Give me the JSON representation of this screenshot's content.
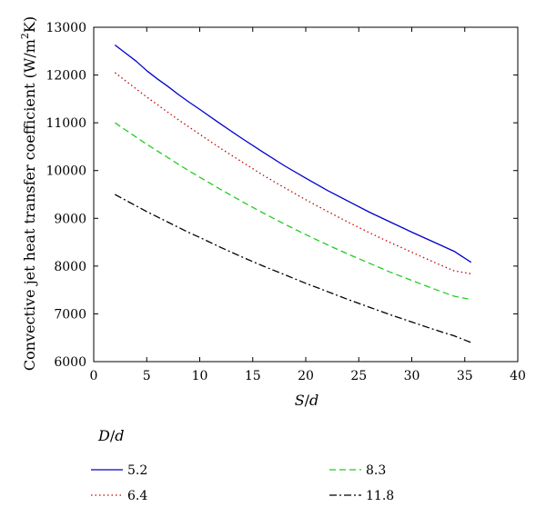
{
  "chart_data": {
    "type": "line",
    "xlabel_parts": {
      "var1": "S",
      "slash": "/",
      "var2": "d"
    },
    "ylabel_parts": {
      "main": "Convective jet heat transfer coefficient (W/m",
      "sup": "2",
      "end": "K)"
    },
    "xlim": [
      0,
      40
    ],
    "ylim": [
      6000,
      13000
    ],
    "x_ticks": [
      0,
      5,
      10,
      15,
      20,
      25,
      30,
      35,
      40
    ],
    "y_ticks": [
      6000,
      7000,
      8000,
      9000,
      10000,
      11000,
      12000,
      13000
    ],
    "grid": false,
    "legend": {
      "title_parts": {
        "var1": "D",
        "slash": "/",
        "var2": "d"
      },
      "placement": "below"
    },
    "series": [
      {
        "name": "5.2",
        "color": "#0000cc",
        "dash": "solid",
        "x": [
          2,
          3,
          4,
          5,
          6,
          7,
          8,
          9,
          10,
          12,
          14,
          16,
          18,
          20,
          22,
          24,
          26,
          28,
          30,
          32,
          34,
          35.6
        ],
        "y": [
          12630,
          12460,
          12290,
          12090,
          11920,
          11760,
          11590,
          11430,
          11280,
          10970,
          10670,
          10380,
          10100,
          9840,
          9590,
          9360,
          9130,
          8920,
          8710,
          8510,
          8310,
          8080
        ]
      },
      {
        "name": "6.4",
        "color": "#cc0000",
        "dash": "dotted",
        "x": [
          2,
          3,
          4,
          5,
          6,
          7,
          8,
          9,
          10,
          12,
          14,
          16,
          18,
          20,
          22,
          24,
          26,
          28,
          30,
          32,
          34,
          35.6
        ],
        "y": [
          12050,
          11880,
          11710,
          11540,
          11380,
          11220,
          11060,
          10910,
          10760,
          10460,
          10180,
          9900,
          9640,
          9390,
          9150,
          8920,
          8700,
          8490,
          8290,
          8090,
          7900,
          7840
        ]
      },
      {
        "name": "8.3",
        "color": "#22cc22",
        "dash": "dashed",
        "x": [
          2,
          3,
          4,
          5,
          6,
          7,
          8,
          9,
          10,
          12,
          14,
          16,
          18,
          20,
          22,
          24,
          26,
          28,
          30,
          32,
          34,
          35.6
        ],
        "y": [
          11000,
          10850,
          10700,
          10550,
          10410,
          10270,
          10130,
          9990,
          9860,
          9600,
          9350,
          9110,
          8880,
          8660,
          8450,
          8250,
          8060,
          7870,
          7700,
          7530,
          7370,
          7300
        ]
      },
      {
        "name": "11.8",
        "color": "#000000",
        "dash": "dashdot",
        "x": [
          2,
          3,
          4,
          5,
          6,
          7,
          8,
          9,
          10,
          12,
          14,
          16,
          18,
          20,
          22,
          24,
          26,
          28,
          30,
          32,
          34,
          35.6
        ],
        "y": [
          9500,
          9380,
          9260,
          9140,
          9030,
          8920,
          8810,
          8700,
          8600,
          8390,
          8190,
          8000,
          7820,
          7640,
          7470,
          7300,
          7140,
          6980,
          6830,
          6680,
          6540,
          6400
        ]
      }
    ]
  }
}
